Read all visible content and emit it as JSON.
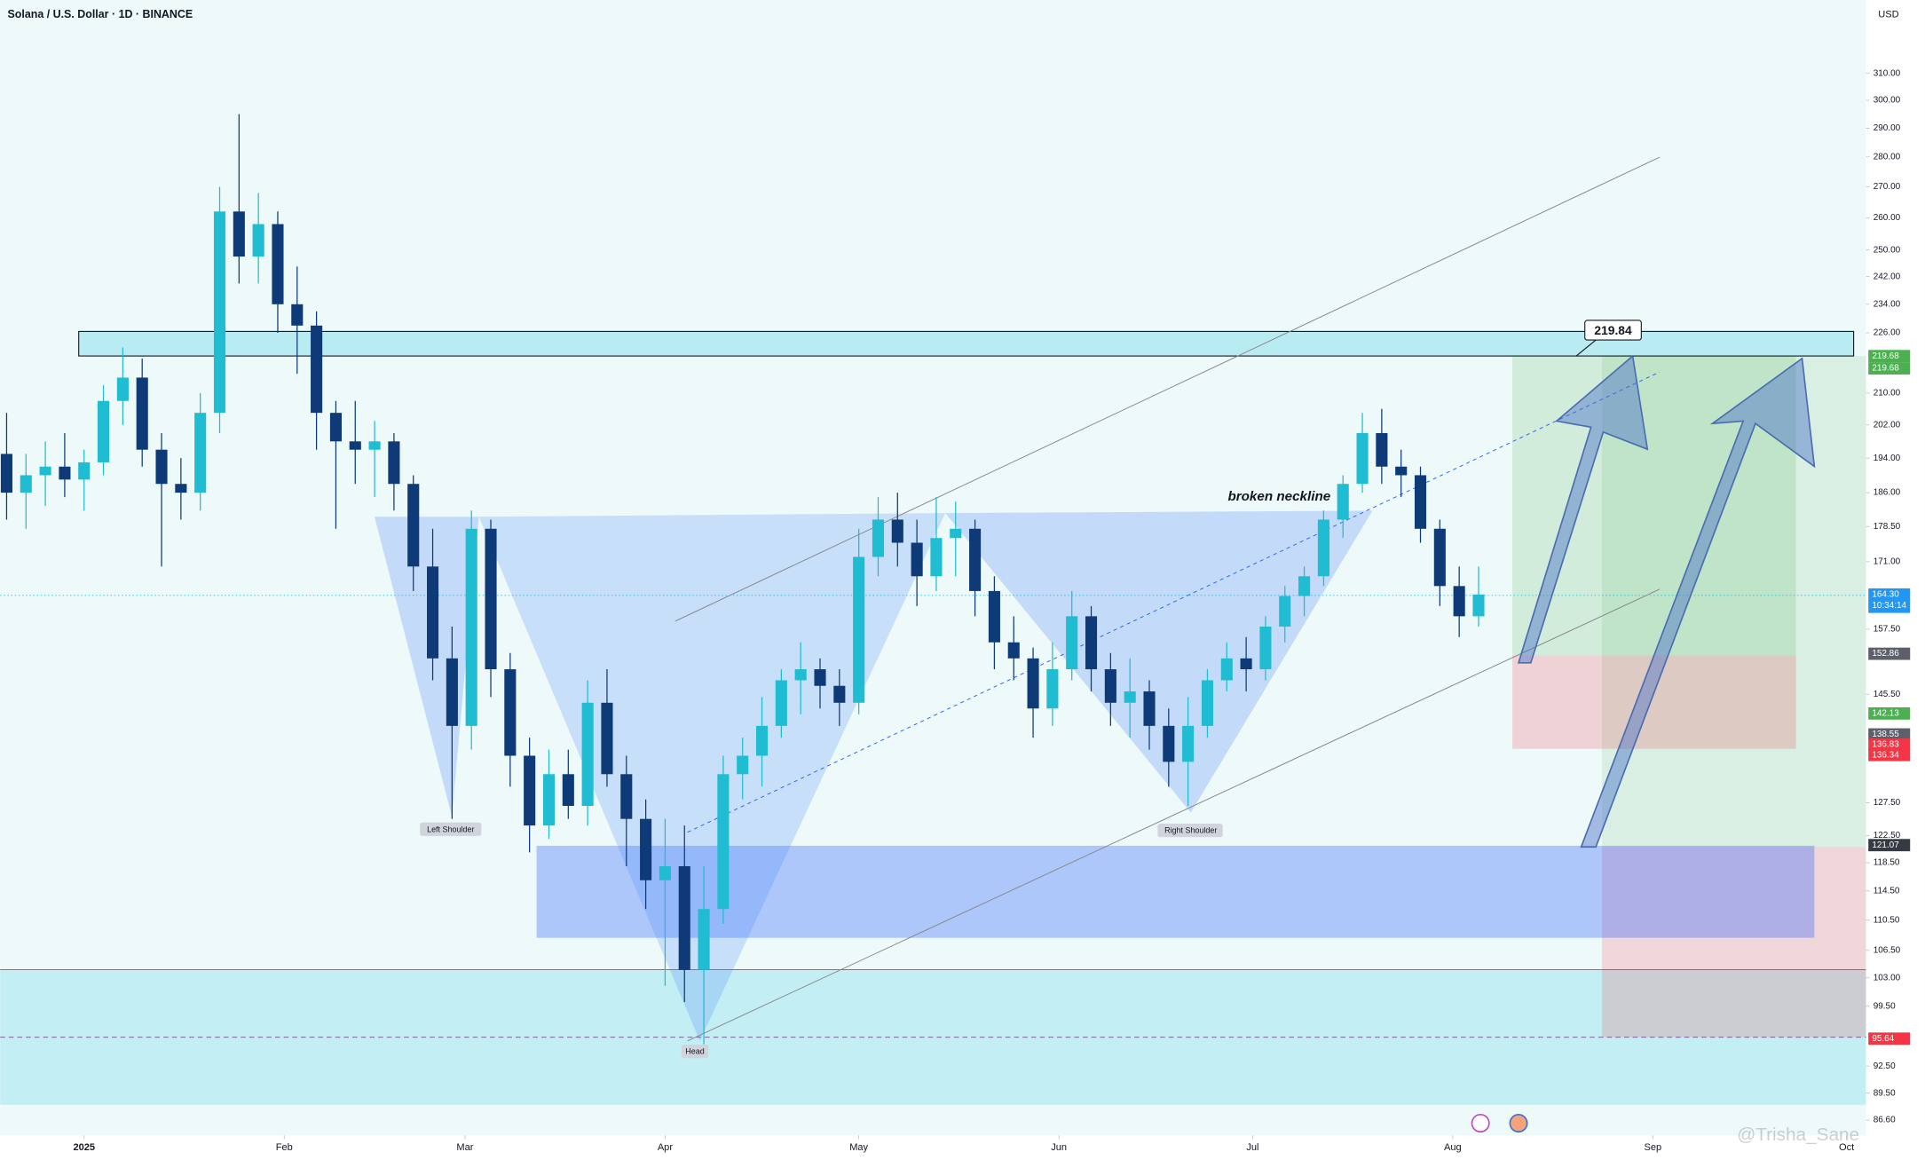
{
  "chart_data": {
    "type": "candlestick",
    "title": "Solana / U.S. Dollar · 1D · BINANCE",
    "currency": "USD",
    "watermark": "@Trisha_Sane",
    "log_scale": true,
    "ylim": [
      85,
      339
    ],
    "yticks": [
      {
        "value": 310,
        "label": "310.00"
      },
      {
        "value": 300,
        "label": "300.00"
      },
      {
        "value": 290,
        "label": "290.00"
      },
      {
        "value": 280,
        "label": "280.00"
      },
      {
        "value": 270,
        "label": "270.00"
      },
      {
        "value": 260,
        "label": "260.00"
      },
      {
        "value": 250,
        "label": "250.00"
      },
      {
        "value": 242,
        "label": "242.00"
      },
      {
        "value": 234,
        "label": "234.00"
      },
      {
        "value": 226,
        "label": "226.00"
      },
      {
        "value": 210,
        "label": "210.00"
      },
      {
        "value": 202,
        "label": "202.00"
      },
      {
        "value": 194,
        "label": "194.00"
      },
      {
        "value": 186,
        "label": "186.00"
      },
      {
        "value": 178.5,
        "label": "178.50"
      },
      {
        "value": 171,
        "label": "171.00"
      },
      {
        "value": 157.5,
        "label": "157.50"
      },
      {
        "value": 145.5,
        "label": "145.50"
      },
      {
        "value": 127.5,
        "label": "127.50"
      },
      {
        "value": 122.5,
        "label": "122.50"
      },
      {
        "value": 118.5,
        "label": "118.50"
      },
      {
        "value": 114.5,
        "label": "114.50"
      },
      {
        "value": 110.5,
        "label": "110.50"
      },
      {
        "value": 106.5,
        "label": "106.50"
      },
      {
        "value": 103,
        "label": "103.00"
      },
      {
        "value": 99.5,
        "label": "99.50"
      },
      {
        "value": 92.5,
        "label": "92.50"
      },
      {
        "value": 89.5,
        "label": "89.50"
      },
      {
        "value": 86.6,
        "label": "86.60"
      }
    ],
    "xlim": [
      -13,
      276
    ],
    "xticks": [
      {
        "value": 0,
        "label": "2025"
      },
      {
        "value": 31,
        "label": "Feb"
      },
      {
        "value": 59,
        "label": "Mar"
      },
      {
        "value": 90,
        "label": "Apr"
      },
      {
        "value": 120,
        "label": "May"
      },
      {
        "value": 151,
        "label": "Jun"
      },
      {
        "value": 181,
        "label": "Jul"
      },
      {
        "value": 212,
        "label": "Aug"
      },
      {
        "value": 243,
        "label": "Sep"
      },
      {
        "value": 273,
        "label": "Oct"
      }
    ],
    "up_color": "#1fbcd2",
    "down_color": "#0e3a78",
    "candles": [
      {
        "x": -12,
        "open": 195,
        "high": 205,
        "low": 180,
        "close": 186
      },
      {
        "x": -9,
        "open": 186,
        "high": 195,
        "low": 178,
        "close": 190
      },
      {
        "x": -6,
        "open": 190,
        "high": 198,
        "low": 183,
        "close": 192
      },
      {
        "x": -3,
        "open": 192,
        "high": 200,
        "low": 185,
        "close": 189
      },
      {
        "x": 0,
        "open": 189,
        "high": 196,
        "low": 182,
        "close": 193
      },
      {
        "x": 3,
        "open": 193,
        "high": 212,
        "low": 190,
        "close": 208
      },
      {
        "x": 6,
        "open": 208,
        "high": 222,
        "low": 202,
        "close": 214
      },
      {
        "x": 9,
        "open": 214,
        "high": 219,
        "low": 192,
        "close": 196
      },
      {
        "x": 12,
        "open": 196,
        "high": 200,
        "low": 170,
        "close": 188
      },
      {
        "x": 15,
        "open": 188,
        "high": 194,
        "low": 180,
        "close": 186
      },
      {
        "x": 18,
        "open": 186,
        "high": 210,
        "low": 182,
        "close": 205
      },
      {
        "x": 21,
        "open": 205,
        "high": 270,
        "low": 200,
        "close": 262
      },
      {
        "x": 24,
        "open": 262,
        "high": 295,
        "low": 240,
        "close": 248
      },
      {
        "x": 27,
        "open": 248,
        "high": 268,
        "low": 240,
        "close": 258
      },
      {
        "x": 30,
        "open": 258,
        "high": 262,
        "low": 226,
        "close": 234
      },
      {
        "x": 33,
        "open": 234,
        "high": 245,
        "low": 215,
        "close": 228
      },
      {
        "x": 36,
        "open": 228,
        "high": 232,
        "low": 196,
        "close": 205
      },
      {
        "x": 39,
        "open": 205,
        "high": 208,
        "low": 178,
        "close": 198
      },
      {
        "x": 42,
        "open": 198,
        "high": 208,
        "low": 188,
        "close": 196
      },
      {
        "x": 45,
        "open": 196,
        "high": 203,
        "low": 185,
        "close": 198
      },
      {
        "x": 48,
        "open": 198,
        "high": 200,
        "low": 182,
        "close": 188
      },
      {
        "x": 51,
        "open": 188,
        "high": 190,
        "low": 165,
        "close": 170
      },
      {
        "x": 54,
        "open": 170,
        "high": 178,
        "low": 148,
        "close": 152
      },
      {
        "x": 57,
        "open": 152,
        "high": 158,
        "low": 125,
        "close": 140
      },
      {
        "x": 60,
        "open": 140,
        "high": 182,
        "low": 136,
        "close": 178
      },
      {
        "x": 63,
        "open": 178,
        "high": 180,
        "low": 145,
        "close": 150
      },
      {
        "x": 66,
        "open": 150,
        "high": 153,
        "low": 130,
        "close": 135
      },
      {
        "x": 69,
        "open": 135,
        "high": 138,
        "low": 120,
        "close": 124
      },
      {
        "x": 72,
        "open": 124,
        "high": 136,
        "low": 122,
        "close": 132
      },
      {
        "x": 75,
        "open": 132,
        "high": 136,
        "low": 125,
        "close": 127
      },
      {
        "x": 78,
        "open": 127,
        "high": 148,
        "low": 124,
        "close": 144
      },
      {
        "x": 81,
        "open": 144,
        "high": 150,
        "low": 130,
        "close": 132
      },
      {
        "x": 84,
        "open": 132,
        "high": 135,
        "low": 118,
        "close": 125
      },
      {
        "x": 87,
        "open": 125,
        "high": 128,
        "low": 112,
        "close": 116
      },
      {
        "x": 90,
        "open": 116,
        "high": 125,
        "low": 102,
        "close": 118
      },
      {
        "x": 93,
        "open": 118,
        "high": 124,
        "low": 100,
        "close": 104
      },
      {
        "x": 96,
        "open": 104,
        "high": 118,
        "low": 95,
        "close": 112
      },
      {
        "x": 99,
        "open": 112,
        "high": 135,
        "low": 110,
        "close": 132
      },
      {
        "x": 102,
        "open": 132,
        "high": 138,
        "low": 128,
        "close": 135
      },
      {
        "x": 105,
        "open": 135,
        "high": 145,
        "low": 130,
        "close": 140
      },
      {
        "x": 108,
        "open": 140,
        "high": 150,
        "low": 138,
        "close": 148
      },
      {
        "x": 111,
        "open": 148,
        "high": 155,
        "low": 142,
        "close": 150
      },
      {
        "x": 114,
        "open": 150,
        "high": 152,
        "low": 143,
        "close": 147
      },
      {
        "x": 117,
        "open": 147,
        "high": 150,
        "low": 140,
        "close": 144
      },
      {
        "x": 120,
        "open": 144,
        "high": 178,
        "low": 142,
        "close": 172
      },
      {
        "x": 123,
        "open": 172,
        "high": 185,
        "low": 168,
        "close": 180
      },
      {
        "x": 126,
        "open": 180,
        "high": 186,
        "low": 170,
        "close": 175
      },
      {
        "x": 129,
        "open": 175,
        "high": 180,
        "low": 162,
        "close": 168
      },
      {
        "x": 132,
        "open": 168,
        "high": 185,
        "low": 165,
        "close": 176
      },
      {
        "x": 135,
        "open": 176,
        "high": 184,
        "low": 168,
        "close": 178
      },
      {
        "x": 138,
        "open": 178,
        "high": 180,
        "low": 160,
        "close": 165
      },
      {
        "x": 141,
        "open": 165,
        "high": 168,
        "low": 150,
        "close": 155
      },
      {
        "x": 144,
        "open": 155,
        "high": 160,
        "low": 148,
        "close": 152
      },
      {
        "x": 147,
        "open": 152,
        "high": 154,
        "low": 138,
        "close": 143
      },
      {
        "x": 150,
        "open": 143,
        "high": 155,
        "low": 140,
        "close": 150
      },
      {
        "x": 153,
        "open": 150,
        "high": 165,
        "low": 148,
        "close": 160
      },
      {
        "x": 156,
        "open": 160,
        "high": 162,
        "low": 146,
        "close": 150
      },
      {
        "x": 159,
        "open": 150,
        "high": 153,
        "low": 140,
        "close": 144
      },
      {
        "x": 162,
        "open": 144,
        "high": 152,
        "low": 138,
        "close": 146
      },
      {
        "x": 165,
        "open": 146,
        "high": 148,
        "low": 136,
        "close": 140
      },
      {
        "x": 168,
        "open": 140,
        "high": 143,
        "low": 130,
        "close": 134
      },
      {
        "x": 171,
        "open": 134,
        "high": 145,
        "low": 127,
        "close": 140
      },
      {
        "x": 174,
        "open": 140,
        "high": 150,
        "low": 138,
        "close": 148
      },
      {
        "x": 177,
        "open": 148,
        "high": 155,
        "low": 146,
        "close": 152
      },
      {
        "x": 180,
        "open": 152,
        "high": 156,
        "low": 146,
        "close": 150
      },
      {
        "x": 183,
        "open": 150,
        "high": 160,
        "low": 148,
        "close": 158
      },
      {
        "x": 186,
        "open": 158,
        "high": 166,
        "low": 155,
        "close": 164
      },
      {
        "x": 189,
        "open": 164,
        "high": 170,
        "low": 160,
        "close": 168
      },
      {
        "x": 192,
        "open": 168,
        "high": 182,
        "low": 166,
        "close": 180
      },
      {
        "x": 195,
        "open": 180,
        "high": 190,
        "low": 176,
        "close": 188
      },
      {
        "x": 198,
        "open": 188,
        "high": 205,
        "low": 186,
        "close": 200
      },
      {
        "x": 201,
        "open": 200,
        "high": 206,
        "low": 188,
        "close": 192
      },
      {
        "x": 204,
        "open": 192,
        "high": 196,
        "low": 185,
        "close": 190
      },
      {
        "x": 207,
        "open": 190,
        "high": 192,
        "low": 175,
        "close": 178
      },
      {
        "x": 210,
        "open": 178,
        "high": 180,
        "low": 162,
        "close": 166
      },
      {
        "x": 213,
        "open": 166,
        "high": 170,
        "low": 156,
        "close": 160
      },
      {
        "x": 216,
        "open": 160,
        "high": 170,
        "low": 158,
        "close": 164.3
      }
    ],
    "price_labels": [
      {
        "value": 219.68,
        "label": "219.68",
        "color": "#4caf50"
      },
      {
        "value": 219.68,
        "label": "219.68",
        "color": "#4caf50"
      },
      {
        "value": 164.3,
        "label": "164.30",
        "color": "#2196f3",
        "countdown": "10:34:14"
      },
      {
        "value": 152.86,
        "label": "152.86",
        "color": "#5d606b"
      },
      {
        "value": 142.13,
        "label": "142.13",
        "color": "#4caf50"
      },
      {
        "value": 138.55,
        "label": "138.55",
        "color": "#5d606b"
      },
      {
        "value": 136.83,
        "label": "136.83",
        "color": "#f23645"
      },
      {
        "value": 136.34,
        "label": "136.34",
        "color": "#f23645"
      },
      {
        "value": 121.07,
        "label": "121.07",
        "color": "#363a45"
      },
      {
        "value": 95.64,
        "label": "95.64",
        "color": "#f23645"
      }
    ],
    "annotations": {
      "neckline": "broken neckline",
      "left_shoulder": "Left Shoulder",
      "head": "Head",
      "right_shoulder": "Right Shoulder",
      "target": "219.84"
    }
  }
}
